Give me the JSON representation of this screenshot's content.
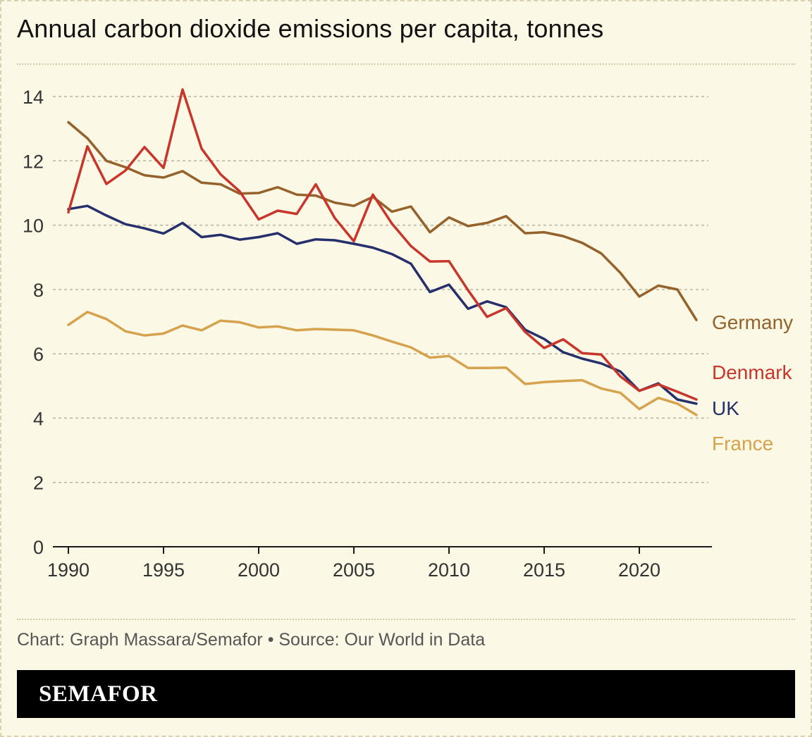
{
  "header": {
    "title": "Annual carbon dioxide emissions per capita, tonnes"
  },
  "footer": {
    "source": "Chart: Graph Massara/Semafor • Source: Our World in Data",
    "brand": "SEMAFOR"
  },
  "chart_data": {
    "type": "line",
    "title": "Annual carbon dioxide emissions per capita, tonnes",
    "xlabel": "",
    "ylabel": "",
    "xlim": [
      1990,
      2023
    ],
    "ylim": [
      0,
      14
    ],
    "x_ticks": [
      1990,
      1995,
      2000,
      2005,
      2010,
      2015,
      2020
    ],
    "y_ticks": [
      0,
      2,
      4,
      6,
      8,
      10,
      12,
      14
    ],
    "grid": "horizontal-dotted",
    "legend": "direct-labels-right",
    "x": [
      1990,
      1991,
      1992,
      1993,
      1994,
      1995,
      1996,
      1997,
      1998,
      1999,
      2000,
      2001,
      2002,
      2003,
      2004,
      2005,
      2006,
      2007,
      2008,
      2009,
      2010,
      2011,
      2012,
      2013,
      2014,
      2015,
      2016,
      2017,
      2018,
      2019,
      2020,
      2021,
      2022,
      2023
    ],
    "series": [
      {
        "name": "Germany",
        "color": "#94622a",
        "values": [
          13.2,
          12.7,
          12.0,
          11.8,
          11.55,
          11.48,
          11.68,
          11.32,
          11.27,
          10.98,
          11.0,
          11.18,
          10.95,
          10.92,
          10.7,
          10.6,
          10.88,
          10.42,
          10.58,
          9.78,
          10.24,
          9.97,
          10.07,
          10.28,
          9.75,
          9.78,
          9.66,
          9.45,
          9.12,
          8.52,
          7.78,
          8.12,
          8.0,
          7.05
        ]
      },
      {
        "name": "Denmark",
        "color": "#c8352a",
        "values": [
          10.4,
          12.45,
          11.28,
          11.7,
          12.43,
          11.78,
          14.22,
          12.38,
          11.58,
          11.05,
          10.18,
          10.45,
          10.35,
          11.27,
          10.22,
          9.5,
          10.95,
          10.05,
          9.35,
          8.87,
          8.88,
          7.98,
          7.15,
          7.42,
          6.68,
          6.18,
          6.45,
          6.02,
          5.98,
          5.3,
          4.85,
          5.05,
          4.82,
          4.58
        ]
      },
      {
        "name": "UK",
        "color": "#252f6b",
        "values": [
          10.5,
          10.6,
          10.3,
          10.03,
          9.9,
          9.74,
          10.07,
          9.63,
          9.7,
          9.55,
          9.63,
          9.75,
          9.42,
          9.56,
          9.53,
          9.42,
          9.3,
          9.1,
          8.8,
          7.92,
          8.15,
          7.4,
          7.63,
          7.45,
          6.75,
          6.46,
          6.05,
          5.85,
          5.7,
          5.45,
          4.85,
          5.08,
          4.58,
          4.45
        ]
      },
      {
        "name": "France",
        "color": "#d6a24e",
        "values": [
          6.9,
          7.3,
          7.08,
          6.7,
          6.57,
          6.63,
          6.88,
          6.73,
          7.03,
          6.98,
          6.82,
          6.85,
          6.73,
          6.77,
          6.75,
          6.73,
          6.57,
          6.38,
          6.2,
          5.88,
          5.93,
          5.56,
          5.56,
          5.57,
          5.06,
          5.12,
          5.15,
          5.18,
          4.92,
          4.79,
          4.28,
          4.63,
          4.45,
          4.1
        ]
      }
    ]
  }
}
